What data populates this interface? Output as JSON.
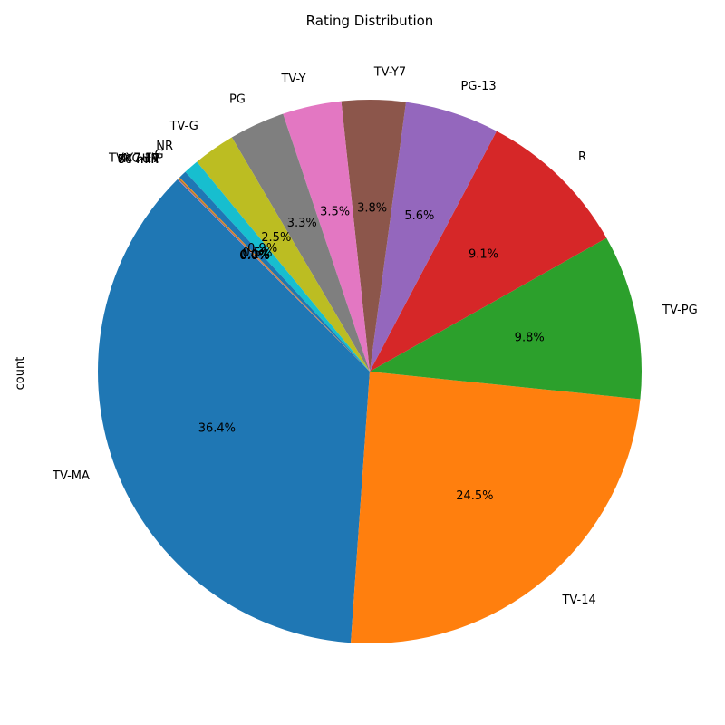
{
  "chart_data": {
    "type": "pie",
    "title": "Rating Distribution",
    "ylabel": "count",
    "start_angle_deg": 135,
    "direction": "counterclockwise",
    "slices": [
      {
        "label": "TV-MA",
        "percent": 36.4,
        "pct_text": "36.4%",
        "color": "#1f77b4"
      },
      {
        "label": "TV-14",
        "percent": 24.5,
        "pct_text": "24.5%",
        "color": "#ff7f0e"
      },
      {
        "label": "TV-PG",
        "percent": 9.8,
        "pct_text": "9.8%",
        "color": "#2ca02c"
      },
      {
        "label": "R",
        "percent": 9.1,
        "pct_text": "9.1%",
        "color": "#d62728"
      },
      {
        "label": "PG-13",
        "percent": 5.6,
        "pct_text": "5.6%",
        "color": "#9467bd"
      },
      {
        "label": "TV-Y7",
        "percent": 3.8,
        "pct_text": "3.8%",
        "color": "#8c564b"
      },
      {
        "label": "TV-Y",
        "percent": 3.5,
        "pct_text": "3.5%",
        "color": "#e377c2"
      },
      {
        "label": "PG",
        "percent": 3.3,
        "pct_text": "3.3%",
        "color": "#7f7f7f"
      },
      {
        "label": "TV-G",
        "percent": 2.5,
        "pct_text": "2.5%",
        "color": "#bcbd22"
      },
      {
        "label": "NR",
        "percent": 0.9,
        "pct_text": "0.9%",
        "color": "#17becf"
      },
      {
        "label": "G",
        "percent": 0.47,
        "pct_text": "0.5%",
        "color": "#1f77b4"
      },
      {
        "label": "TV-Y7-FV",
        "percent": 0.07,
        "pct_text": "0.1%",
        "color": "#ff7f0e"
      },
      {
        "label": "NC-17",
        "percent": 0.03,
        "pct_text": "0.0%",
        "color": "#2ca02c"
      },
      {
        "label": "UR",
        "percent": 0.03,
        "pct_text": "0.0%",
        "color": "#d62728"
      },
      {
        "label": "74 min",
        "percent": 0.011,
        "pct_text": "0.0%",
        "color": "#9467bd"
      },
      {
        "label": "84 min",
        "percent": 0.011,
        "pct_text": "0.0%",
        "color": "#8c564b"
      },
      {
        "label": "66 min",
        "percent": 0.011,
        "pct_text": "0.0%",
        "color": "#e377c2"
      }
    ]
  }
}
